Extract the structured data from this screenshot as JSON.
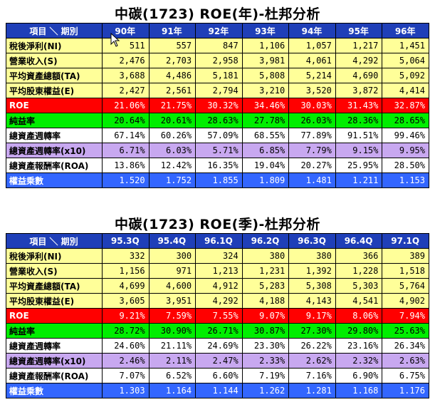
{
  "table1": {
    "title": "中碳(1723)  ROE(年)-杜邦分析",
    "corner": "項目 ＼ 期別",
    "periods": [
      "90年",
      "91年",
      "92年",
      "93年",
      "94年",
      "95年",
      "96年"
    ],
    "rows": [
      {
        "label": "稅後淨利(NI)",
        "style": "yellow",
        "values": [
          "511",
          "557",
          "847",
          "1,106",
          "1,057",
          "1,217",
          "1,451"
        ]
      },
      {
        "label": "營業收入(S)",
        "style": "yellow",
        "values": [
          "2,476",
          "2,703",
          "2,958",
          "3,981",
          "4,061",
          "4,292",
          "5,064"
        ]
      },
      {
        "label": "平均資產總額(TA)",
        "style": "yellow",
        "values": [
          "3,688",
          "4,486",
          "5,181",
          "5,808",
          "5,214",
          "4,690",
          "5,092"
        ]
      },
      {
        "label": "平均股東權益(E)",
        "style": "yellow",
        "values": [
          "2,427",
          "2,561",
          "2,794",
          "3,210",
          "3,520",
          "3,872",
          "4,414"
        ]
      },
      {
        "label": "ROE",
        "style": "red",
        "values": [
          "21.06%",
          "21.75%",
          "30.32%",
          "34.46%",
          "30.03%",
          "31.43%",
          "32.87%"
        ]
      },
      {
        "label": "純益率",
        "style": "green",
        "values": [
          "20.64%",
          "20.61%",
          "28.63%",
          "27.78%",
          "26.03%",
          "28.36%",
          "28.65%"
        ]
      },
      {
        "label": "總資產週轉率",
        "style": "white",
        "values": [
          "67.14%",
          "60.26%",
          "57.09%",
          "68.55%",
          "77.89%",
          "91.51%",
          "99.46%"
        ]
      },
      {
        "label": "總資產週轉率(x10)",
        "style": "purple",
        "values": [
          "6.71%",
          "6.03%",
          "5.71%",
          "6.85%",
          "7.79%",
          "9.15%",
          "9.95%"
        ]
      },
      {
        "label": "總資產報酬率(ROA)",
        "style": "white",
        "values": [
          "13.86%",
          "12.42%",
          "16.35%",
          "19.04%",
          "20.27%",
          "25.95%",
          "28.50%"
        ]
      },
      {
        "label": "權益乘數",
        "style": "blue",
        "values": [
          "1.520",
          "1.752",
          "1.855",
          "1.809",
          "1.481",
          "1.211",
          "1.153"
        ]
      }
    ]
  },
  "table2": {
    "title": "中碳(1723)  ROE(季)-杜邦分析",
    "corner": "項目 ＼ 期別",
    "periods": [
      "95.3Q",
      "95.4Q",
      "96.1Q",
      "96.2Q",
      "96.3Q",
      "96.4Q",
      "97.1Q"
    ],
    "rows": [
      {
        "label": "稅後淨利(NI)",
        "style": "yellow",
        "values": [
          "332",
          "300",
          "324",
          "380",
          "380",
          "366",
          "389"
        ]
      },
      {
        "label": "營業收入(S)",
        "style": "yellow",
        "values": [
          "1,156",
          "971",
          "1,213",
          "1,231",
          "1,392",
          "1,228",
          "1,518"
        ]
      },
      {
        "label": "平均資產總額(TA)",
        "style": "yellow",
        "values": [
          "4,699",
          "4,600",
          "4,912",
          "5,283",
          "5,308",
          "5,303",
          "5,764"
        ]
      },
      {
        "label": "平均股東權益(E)",
        "style": "yellow",
        "values": [
          "3,605",
          "3,951",
          "4,292",
          "4,188",
          "4,143",
          "4,541",
          "4,902"
        ]
      },
      {
        "label": "ROE",
        "style": "red",
        "values": [
          "9.21%",
          "7.59%",
          "7.55%",
          "9.07%",
          "9.17%",
          "8.06%",
          "7.94%"
        ]
      },
      {
        "label": "純益率",
        "style": "green",
        "values": [
          "28.72%",
          "30.90%",
          "26.71%",
          "30.87%",
          "27.30%",
          "29.80%",
          "25.63%"
        ]
      },
      {
        "label": "總資產週轉率",
        "style": "white",
        "values": [
          "24.60%",
          "21.11%",
          "24.69%",
          "23.30%",
          "26.22%",
          "23.16%",
          "26.34%"
        ]
      },
      {
        "label": "總資產週轉率(x10)",
        "style": "purple",
        "values": [
          "2.46%",
          "2.11%",
          "2.47%",
          "2.33%",
          "2.62%",
          "2.32%",
          "2.63%"
        ]
      },
      {
        "label": "總資產報酬率(ROA)",
        "style": "white",
        "values": [
          "7.07%",
          "6.52%",
          "6.60%",
          "7.19%",
          "7.16%",
          "6.90%",
          "6.75%"
        ]
      },
      {
        "label": "權益乘數",
        "style": "blue",
        "values": [
          "1.303",
          "1.164",
          "1.144",
          "1.262",
          "1.281",
          "1.168",
          "1.176"
        ]
      }
    ]
  },
  "colors": {
    "header": "#1f3fb8",
    "yellow": "#ffff99",
    "red": "#ff0000",
    "green": "#00ee00",
    "purple": "#c8a8f0",
    "blue": "#3366ff"
  }
}
